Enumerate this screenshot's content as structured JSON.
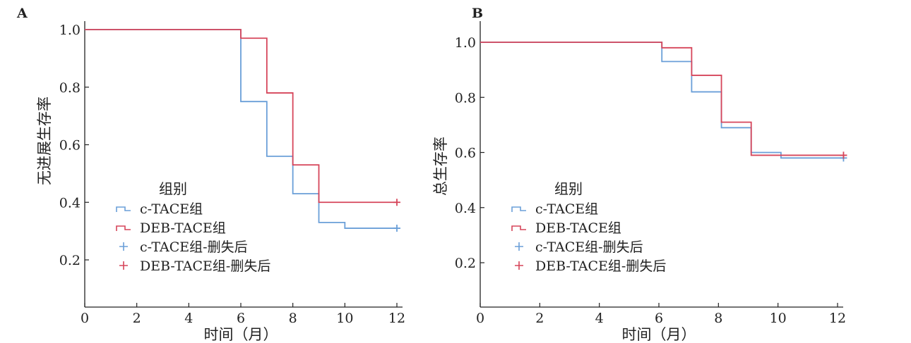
{
  "colors": {
    "c_tace": "#6a9fd8",
    "deb_tace": "#d6455a",
    "axis": "#222222"
  },
  "chart_data": [
    {
      "type": "line",
      "subtype": "kaplan-meier-step",
      "panel_label": "A",
      "xlabel": "时间（月）",
      "ylabel": "无进展生存率",
      "xlim": [
        0,
        12
      ],
      "ylim": [
        0.1,
        1.0
      ],
      "xticks": [
        0,
        2,
        4,
        6,
        8,
        10,
        12
      ],
      "xtick_labels": [
        "0",
        "2",
        "4",
        "6",
        "8",
        "10",
        "12"
      ],
      "yticks": [
        0.2,
        0.4,
        0.6,
        0.8,
        1.0
      ],
      "ytick_labels": [
        "0.2",
        "0.4",
        "0.6",
        "0.8",
        "1.0"
      ],
      "legend": {
        "title": "组别",
        "placement": "lower-left",
        "entries": [
          "c-TACE组",
          "DEB-TACE组",
          "c-TACE组-删失后",
          "DEB-TACE组-删失后"
        ]
      },
      "series": [
        {
          "name": "c-TACE组",
          "color_key": "c_tace",
          "x": [
            0,
            6,
            7,
            8,
            9,
            10,
            12
          ],
          "y": [
            1.0,
            0.75,
            0.56,
            0.43,
            0.33,
            0.31,
            0.31
          ],
          "censored": [
            {
              "x": 12,
              "y": 0.31
            }
          ]
        },
        {
          "name": "DEB-TACE组",
          "color_key": "deb_tace",
          "x": [
            0,
            6,
            7,
            8,
            9,
            12
          ],
          "y": [
            1.0,
            0.97,
            0.78,
            0.53,
            0.4,
            0.4
          ],
          "censored": [
            {
              "x": 12,
              "y": 0.4
            }
          ]
        }
      ]
    },
    {
      "type": "line",
      "subtype": "kaplan-meier-step",
      "panel_label": "B",
      "xlabel": "时间（月）",
      "ylabel": "总生存率",
      "xlim": [
        0,
        12
      ],
      "ylim": [
        0.1,
        1.05
      ],
      "xticks": [
        0,
        2,
        4,
        6,
        8,
        10,
        12
      ],
      "xtick_labels": [
        "0",
        "2",
        "4",
        "6",
        "8",
        "10",
        "12"
      ],
      "yticks": [
        0.2,
        0.4,
        0.6,
        0.8,
        1.0
      ],
      "ytick_labels": [
        "0.2",
        "0.4",
        "0.6",
        "0.8",
        "1.0"
      ],
      "legend": {
        "title": "组别",
        "placement": "lower-left",
        "entries": [
          "c-TACE组",
          "DEB-TACE组",
          "c-TACE组-删失后",
          "DEB-TACE组-删失后"
        ]
      },
      "series": [
        {
          "name": "c-TACE组",
          "color_key": "c_tace",
          "x": [
            0,
            6.1,
            7.1,
            8.1,
            9.1,
            10.1,
            12.2
          ],
          "y": [
            1.0,
            0.93,
            0.82,
            0.69,
            0.6,
            0.58,
            0.58
          ],
          "censored": [
            {
              "x": 12.2,
              "y": 0.58
            }
          ]
        },
        {
          "name": "DEB-TACE组",
          "color_key": "deb_tace",
          "x": [
            0,
            6.1,
            7.1,
            8.1,
            9.1,
            12.2
          ],
          "y": [
            1.0,
            0.98,
            0.88,
            0.71,
            0.59,
            0.59
          ],
          "censored": [
            {
              "x": 12.2,
              "y": 0.59
            }
          ]
        }
      ]
    }
  ]
}
